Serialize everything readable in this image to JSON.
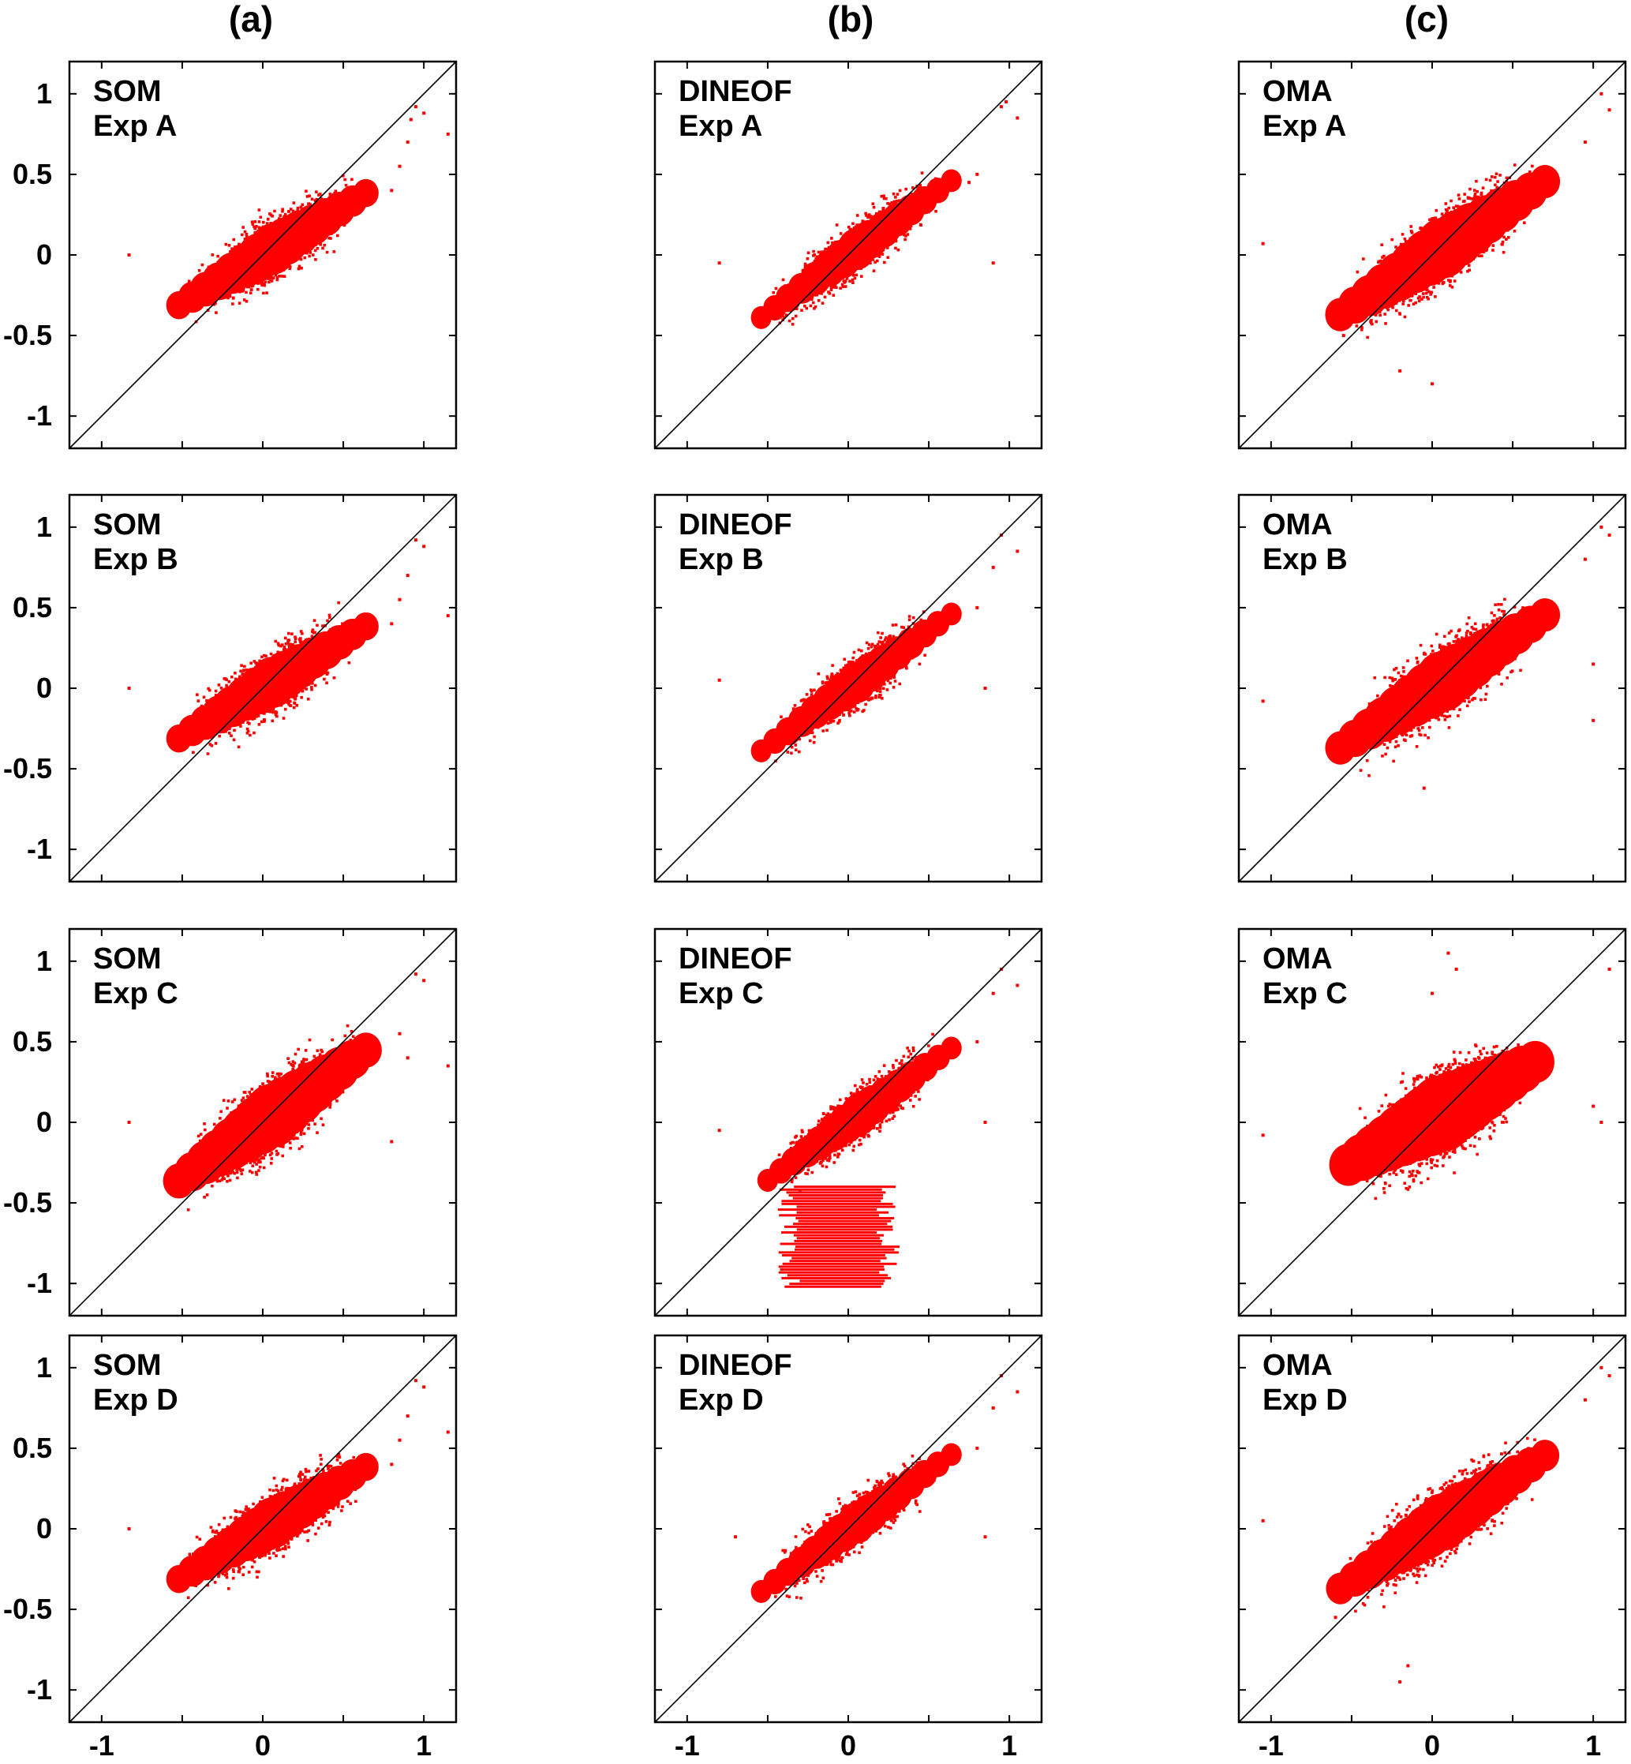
{
  "figure": {
    "column_titles": [
      "(a)",
      "(b)",
      "(c)"
    ],
    "point_color": "#ff0000",
    "frame_color": "#000000"
  },
  "chart_data": [
    {
      "type": "scatter",
      "panel": "a-A",
      "method": "SOM",
      "experiment": "Exp A",
      "xlim": [
        -1.2,
        1.2
      ],
      "ylim": [
        -1.2,
        1.2
      ],
      "reference_line": "y = x",
      "axis_ticks": [
        -1,
        -0.5,
        0,
        0.5,
        1
      ],
      "x_tick_labels": [],
      "y_tick_labels": [
        "-1",
        "-0.5",
        "0",
        "0.5",
        "1"
      ],
      "cloud": {
        "center": [
          0.0,
          0.0
        ],
        "slope": 0.6,
        "x_extent": [
          -0.6,
          0.72
        ],
        "spread": 0.16,
        "density": 1300,
        "outliers": [
          [
            0.95,
            0.92
          ],
          [
            1.0,
            0.88
          ],
          [
            0.85,
            0.55
          ],
          [
            0.9,
            0.7
          ],
          [
            -0.83,
            0.0
          ],
          [
            0.8,
            0.4
          ],
          [
            0.92,
            0.84
          ],
          [
            1.15,
            0.75
          ]
        ]
      }
    },
    {
      "type": "scatter",
      "panel": "b-A",
      "method": "DINEOF",
      "experiment": "Exp A",
      "xlim": [
        -1.2,
        1.2
      ],
      "ylim": [
        -1.2,
        1.2
      ],
      "reference_line": "y = x",
      "axis_ticks": [
        -1,
        -0.5,
        0,
        0.5,
        1
      ],
      "x_tick_labels": [],
      "y_tick_labels": [],
      "cloud": {
        "center": [
          0.0,
          0.0
        ],
        "slope": 0.72,
        "x_extent": [
          -0.62,
          0.72
        ],
        "spread": 0.13,
        "density": 1200,
        "outliers": [
          [
            0.8,
            0.5
          ],
          [
            0.75,
            0.45
          ],
          [
            0.95,
            0.92
          ],
          [
            1.05,
            0.85
          ],
          [
            0.9,
            -0.05
          ],
          [
            -0.8,
            -0.05
          ],
          [
            0.98,
            0.95
          ]
        ]
      }
    },
    {
      "type": "scatter",
      "panel": "c-A",
      "method": "OMA",
      "experiment": "Exp A",
      "xlim": [
        -1.2,
        1.2
      ],
      "ylim": [
        -1.2,
        1.2
      ],
      "reference_line": "y = x",
      "axis_ticks": [
        -1,
        -0.5,
        0,
        0.5,
        1
      ],
      "x_tick_labels": [],
      "y_tick_labels": [],
      "cloud": {
        "center": [
          0.0,
          0.0
        ],
        "slope": 0.65,
        "x_extent": [
          -0.65,
          0.78
        ],
        "spread": 0.19,
        "density": 1500,
        "outliers": [
          [
            -1.05,
            0.07
          ],
          [
            0.0,
            -0.8
          ],
          [
            1.1,
            0.9
          ],
          [
            0.95,
            0.7
          ],
          [
            -0.2,
            -0.72
          ],
          [
            1.05,
            1.0
          ],
          [
            -0.55,
            -0.5
          ]
        ]
      }
    },
    {
      "type": "scatter",
      "panel": "a-B",
      "method": "SOM",
      "experiment": "Exp B",
      "xlim": [
        -1.2,
        1.2
      ],
      "ylim": [
        -1.2,
        1.2
      ],
      "reference_line": "y = x",
      "axis_ticks": [
        -1,
        -0.5,
        0,
        0.5,
        1
      ],
      "x_tick_labels": [],
      "y_tick_labels": [
        "-1",
        "-0.5",
        "0",
        "0.5",
        "1"
      ],
      "cloud": {
        "center": [
          0.0,
          0.0
        ],
        "slope": 0.6,
        "x_extent": [
          -0.6,
          0.72
        ],
        "spread": 0.16,
        "density": 1300,
        "outliers": [
          [
            0.95,
            0.92
          ],
          [
            1.0,
            0.88
          ],
          [
            0.85,
            0.55
          ],
          [
            0.9,
            0.7
          ],
          [
            -0.83,
            0.0
          ],
          [
            0.8,
            0.4
          ],
          [
            1.15,
            0.45
          ]
        ]
      }
    },
    {
      "type": "scatter",
      "panel": "b-B",
      "method": "DINEOF",
      "experiment": "Exp B",
      "xlim": [
        -1.2,
        1.2
      ],
      "ylim": [
        -1.2,
        1.2
      ],
      "reference_line": "y = x",
      "axis_ticks": [
        -1,
        -0.5,
        0,
        0.5,
        1
      ],
      "x_tick_labels": [],
      "y_tick_labels": [],
      "cloud": {
        "center": [
          0.0,
          0.0
        ],
        "slope": 0.72,
        "x_extent": [
          -0.62,
          0.72
        ],
        "spread": 0.13,
        "density": 1200,
        "outliers": [
          [
            0.8,
            0.5
          ],
          [
            0.95,
            0.95
          ],
          [
            1.05,
            0.85
          ],
          [
            0.85,
            0.0
          ],
          [
            -0.8,
            0.05
          ],
          [
            0.9,
            0.75
          ]
        ]
      }
    },
    {
      "type": "scatter",
      "panel": "c-B",
      "method": "OMA",
      "experiment": "Exp B",
      "xlim": [
        -1.2,
        1.2
      ],
      "ylim": [
        -1.2,
        1.2
      ],
      "reference_line": "y = x",
      "axis_ticks": [
        -1,
        -0.5,
        0,
        0.5,
        1
      ],
      "x_tick_labels": [],
      "y_tick_labels": [],
      "cloud": {
        "center": [
          0.0,
          0.0
        ],
        "slope": 0.65,
        "x_extent": [
          -0.65,
          0.78
        ],
        "spread": 0.19,
        "density": 1500,
        "outliers": [
          [
            -1.05,
            -0.08
          ],
          [
            1.0,
            0.15
          ],
          [
            1.1,
            0.95
          ],
          [
            0.95,
            0.8
          ],
          [
            -0.05,
            -0.62
          ],
          [
            1.0,
            -0.2
          ],
          [
            1.05,
            1.0
          ]
        ]
      }
    },
    {
      "type": "scatter",
      "panel": "a-C",
      "method": "SOM",
      "experiment": "Exp C",
      "xlim": [
        -1.2,
        1.2
      ],
      "ylim": [
        -1.2,
        1.2
      ],
      "reference_line": "y = x",
      "axis_ticks": [
        -1,
        -0.5,
        0,
        0.5,
        1
      ],
      "x_tick_labels": [],
      "y_tick_labels": [
        "-1",
        "-0.5",
        "0",
        "0.5",
        "1"
      ],
      "cloud": {
        "center": [
          0.0,
          0.0
        ],
        "slope": 0.7,
        "x_extent": [
          -0.6,
          0.72
        ],
        "spread": 0.2,
        "density": 1400,
        "outliers": [
          [
            0.95,
            0.92
          ],
          [
            1.0,
            0.88
          ],
          [
            0.85,
            0.55
          ],
          [
            0.9,
            0.4
          ],
          [
            -0.83,
            0.0
          ],
          [
            1.15,
            0.35
          ],
          [
            0.8,
            -0.12
          ]
        ]
      }
    },
    {
      "type": "scatter",
      "panel": "b-C",
      "method": "DINEOF",
      "experiment": "Exp C",
      "xlim": [
        -1.2,
        1.2
      ],
      "ylim": [
        -1.2,
        1.2
      ],
      "reference_line": "y = x",
      "axis_ticks": [
        -1,
        -0.5,
        0,
        0.5,
        1
      ],
      "x_tick_labels": [],
      "y_tick_labels": [],
      "cloud": {
        "center": [
          0.0,
          0.0
        ],
        "slope": 0.72,
        "x_extent": [
          -0.58,
          0.72
        ],
        "spread": 0.13,
        "density": 1200,
        "outliers": [
          [
            0.8,
            0.5
          ],
          [
            0.95,
            0.95
          ],
          [
            1.05,
            0.85
          ],
          [
            0.85,
            0.0
          ],
          [
            -0.8,
            -0.05
          ],
          [
            0.9,
            0.8
          ]
        ]
      },
      "stripes": {
        "x_range": [
          -0.45,
          0.32
        ],
        "y_range": [
          -1.02,
          -0.4
        ],
        "rows": 36
      }
    },
    {
      "type": "scatter",
      "panel": "c-C",
      "method": "OMA",
      "experiment": "Exp C",
      "xlim": [
        -1.2,
        1.2
      ],
      "ylim": [
        -1.2,
        1.2
      ],
      "reference_line": "y = x",
      "axis_ticks": [
        -1,
        -0.5,
        0,
        0.5,
        1
      ],
      "x_tick_labels": [],
      "y_tick_labels": [],
      "cloud": {
        "center": [
          0.05,
          0.05
        ],
        "slope": 0.55,
        "x_extent": [
          -0.6,
          0.72
        ],
        "spread": 0.24,
        "density": 1600,
        "outliers": [
          [
            -1.05,
            -0.08
          ],
          [
            0.1,
            1.05
          ],
          [
            0.15,
            0.95
          ],
          [
            1.1,
            0.95
          ],
          [
            1.0,
            0.1
          ],
          [
            1.05,
            0.0
          ],
          [
            0.0,
            0.8
          ]
        ]
      }
    },
    {
      "type": "scatter",
      "panel": "a-D",
      "method": "SOM",
      "experiment": "Exp D",
      "xlim": [
        -1.2,
        1.2
      ],
      "ylim": [
        -1.2,
        1.2
      ],
      "reference_line": "y = x",
      "axis_ticks": [
        -1,
        -0.5,
        0,
        0.5,
        1
      ],
      "x_tick_labels": [
        "-1",
        "0",
        "1"
      ],
      "y_tick_labels": [
        "-1",
        "-0.5",
        "0",
        "0.5",
        "1"
      ],
      "cloud": {
        "center": [
          0.0,
          0.0
        ],
        "slope": 0.6,
        "x_extent": [
          -0.6,
          0.72
        ],
        "spread": 0.16,
        "density": 1300,
        "outliers": [
          [
            0.95,
            0.92
          ],
          [
            1.0,
            0.88
          ],
          [
            0.85,
            0.55
          ],
          [
            0.9,
            0.7
          ],
          [
            -0.83,
            0.0
          ],
          [
            1.15,
            0.6
          ],
          [
            0.8,
            0.4
          ]
        ]
      }
    },
    {
      "type": "scatter",
      "panel": "b-D",
      "method": "DINEOF",
      "experiment": "Exp D",
      "xlim": [
        -1.2,
        1.2
      ],
      "ylim": [
        -1.2,
        1.2
      ],
      "reference_line": "y = x",
      "axis_ticks": [
        -1,
        -0.5,
        0,
        0.5,
        1
      ],
      "x_tick_labels": [
        "-1",
        "0",
        "1"
      ],
      "y_tick_labels": [],
      "cloud": {
        "center": [
          0.0,
          0.0
        ],
        "slope": 0.72,
        "x_extent": [
          -0.62,
          0.72
        ],
        "spread": 0.13,
        "density": 1200,
        "outliers": [
          [
            0.8,
            0.5
          ],
          [
            0.95,
            0.95
          ],
          [
            1.05,
            0.85
          ],
          [
            0.85,
            -0.05
          ],
          [
            -0.7,
            -0.05
          ],
          [
            0.9,
            0.75
          ]
        ]
      }
    },
    {
      "type": "scatter",
      "panel": "c-D",
      "method": "OMA",
      "experiment": "Exp D",
      "xlim": [
        -1.2,
        1.2
      ],
      "ylim": [
        -1.2,
        1.2
      ],
      "reference_line": "y = x",
      "axis_ticks": [
        -1,
        -0.5,
        0,
        0.5,
        1
      ],
      "x_tick_labels": [
        "-1",
        "0",
        "1"
      ],
      "y_tick_labels": [],
      "cloud": {
        "center": [
          0.0,
          0.0
        ],
        "slope": 0.65,
        "x_extent": [
          -0.65,
          0.78
        ],
        "spread": 0.18,
        "density": 1500,
        "outliers": [
          [
            -1.05,
            0.05
          ],
          [
            -0.2,
            -0.95
          ],
          [
            1.1,
            0.95
          ],
          [
            0.95,
            0.8
          ],
          [
            -0.15,
            -0.85
          ],
          [
            1.05,
            1.0
          ],
          [
            -0.6,
            -0.55
          ]
        ]
      }
    }
  ]
}
